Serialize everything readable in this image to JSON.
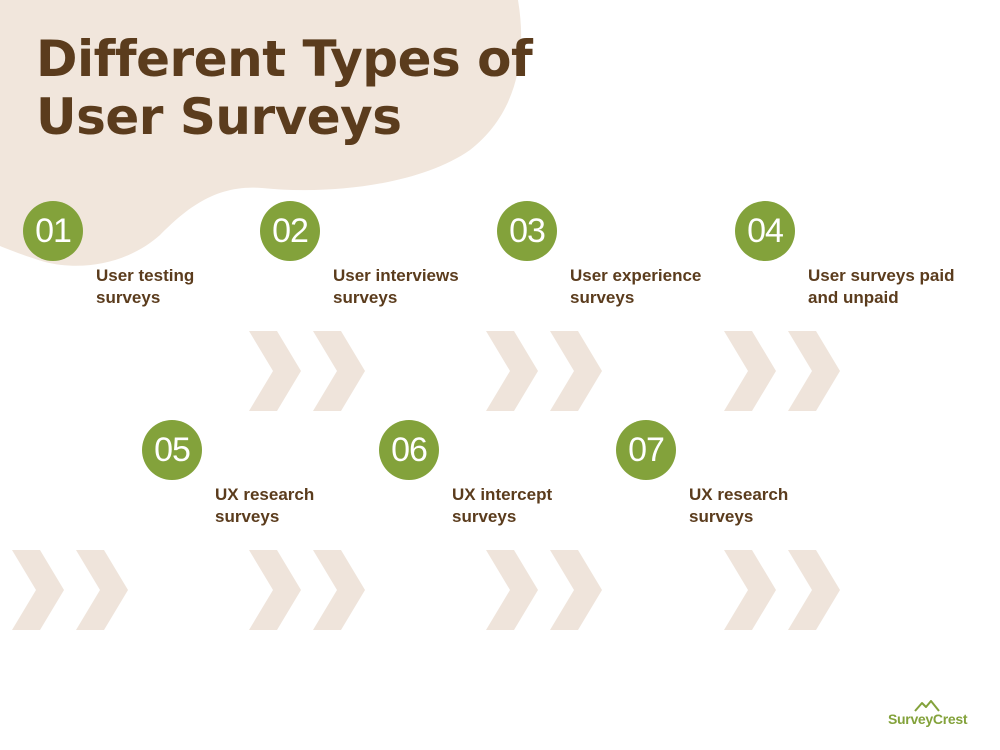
{
  "title": {
    "line1": "Different Types of",
    "line2": "User Surveys"
  },
  "steps": [
    {
      "number": "01",
      "line1": "User testing",
      "line2": "surveys"
    },
    {
      "number": "02",
      "line1": "User interviews",
      "line2": "surveys"
    },
    {
      "number": "03",
      "line1": "User experience",
      "line2": "surveys"
    },
    {
      "number": "04",
      "line1": "User surveys paid",
      "line2": "and unpaid"
    },
    {
      "number": "05",
      "line1": "UX research",
      "line2": "surveys"
    },
    {
      "number": "06",
      "line1": "UX intercept",
      "line2": "surveys"
    },
    {
      "number": "07",
      "line1": "UX research",
      "line2": "surveys"
    }
  ],
  "brand": {
    "name": "SurveyCrest"
  },
  "colors": {
    "accent_green": "#83a23b",
    "heading_brown": "#5b3c1d",
    "blob_beige": "#f1e6dc",
    "chevron_beige": "#efe4db"
  },
  "icons": [
    "double-chevron-right-icon",
    "mountain-logo-icon"
  ]
}
